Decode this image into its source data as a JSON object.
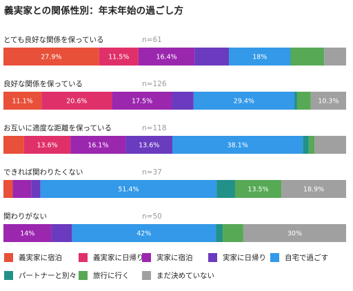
{
  "chart_data": {
    "type": "bar",
    "stacked": true,
    "orientation": "horizontal",
    "percent_scale": 100,
    "title": "義実家との関係性別：年末年始の過ごし方",
    "categories": [
      {
        "label": "とても良好な関係を保っている",
        "n": "n=61"
      },
      {
        "label": "良好な関係を保っている",
        "n": "n=126"
      },
      {
        "label": "お互いに適度な距離を保っている",
        "n": "n=118"
      },
      {
        "label": "できれば関わりたくない",
        "n": "n=37"
      },
      {
        "label": "関わりがない",
        "n": "n=50"
      }
    ],
    "series": [
      {
        "name": "義実家に宿泊",
        "color": "#E8503A",
        "values": [
          27.9,
          11.1,
          6.0,
          2.7,
          0
        ],
        "labels": [
          "27.9%",
          "11.1%",
          "",
          "",
          ""
        ]
      },
      {
        "name": "義実家に日帰り",
        "color": "#E0306A",
        "values": [
          11.5,
          20.6,
          13.6,
          0,
          0
        ],
        "labels": [
          "11.5%",
          "20.6%",
          "13.6%",
          "",
          ""
        ]
      },
      {
        "name": "実家に宿泊",
        "color": "#9B27AF",
        "values": [
          16.4,
          17.5,
          16.1,
          5.4,
          14.0
        ],
        "labels": [
          "16.4%",
          "17.5%",
          "16.1%",
          "",
          "14%"
        ]
      },
      {
        "name": "実家に日帰り",
        "color": "#6A3BBF",
        "values": [
          10.0,
          6.3,
          13.6,
          2.7,
          6.0
        ],
        "labels": [
          "",
          "",
          "13.6%",
          "",
          ""
        ]
      },
      {
        "name": "自宅で過ごす",
        "color": "#3399E8",
        "values": [
          18.0,
          29.4,
          38.1,
          51.4,
          42.0
        ],
        "labels": [
          "18%",
          "29.4%",
          "38.1%",
          "51.4%",
          "42%"
        ]
      },
      {
        "name": "パートナーと別々",
        "color": "#22918A",
        "values": [
          0,
          0.8,
          1.7,
          5.4,
          2.0
        ],
        "labels": [
          "",
          "",
          "",
          "",
          ""
        ]
      },
      {
        "name": "旅行に行く",
        "color": "#57A955",
        "values": [
          9.8,
          4.0,
          1.7,
          13.5,
          6.0
        ],
        "labels": [
          "",
          "",
          "",
          "13.5%",
          ""
        ]
      },
      {
        "name": "まだ決めていない",
        "color": "#A0A0A0",
        "values": [
          6.4,
          10.3,
          9.2,
          18.9,
          30.0
        ],
        "labels": [
          "",
          "10.3%",
          "",
          "18.9%",
          "30%"
        ]
      }
    ],
    "legend_position": "bottom",
    "grid": false
  }
}
